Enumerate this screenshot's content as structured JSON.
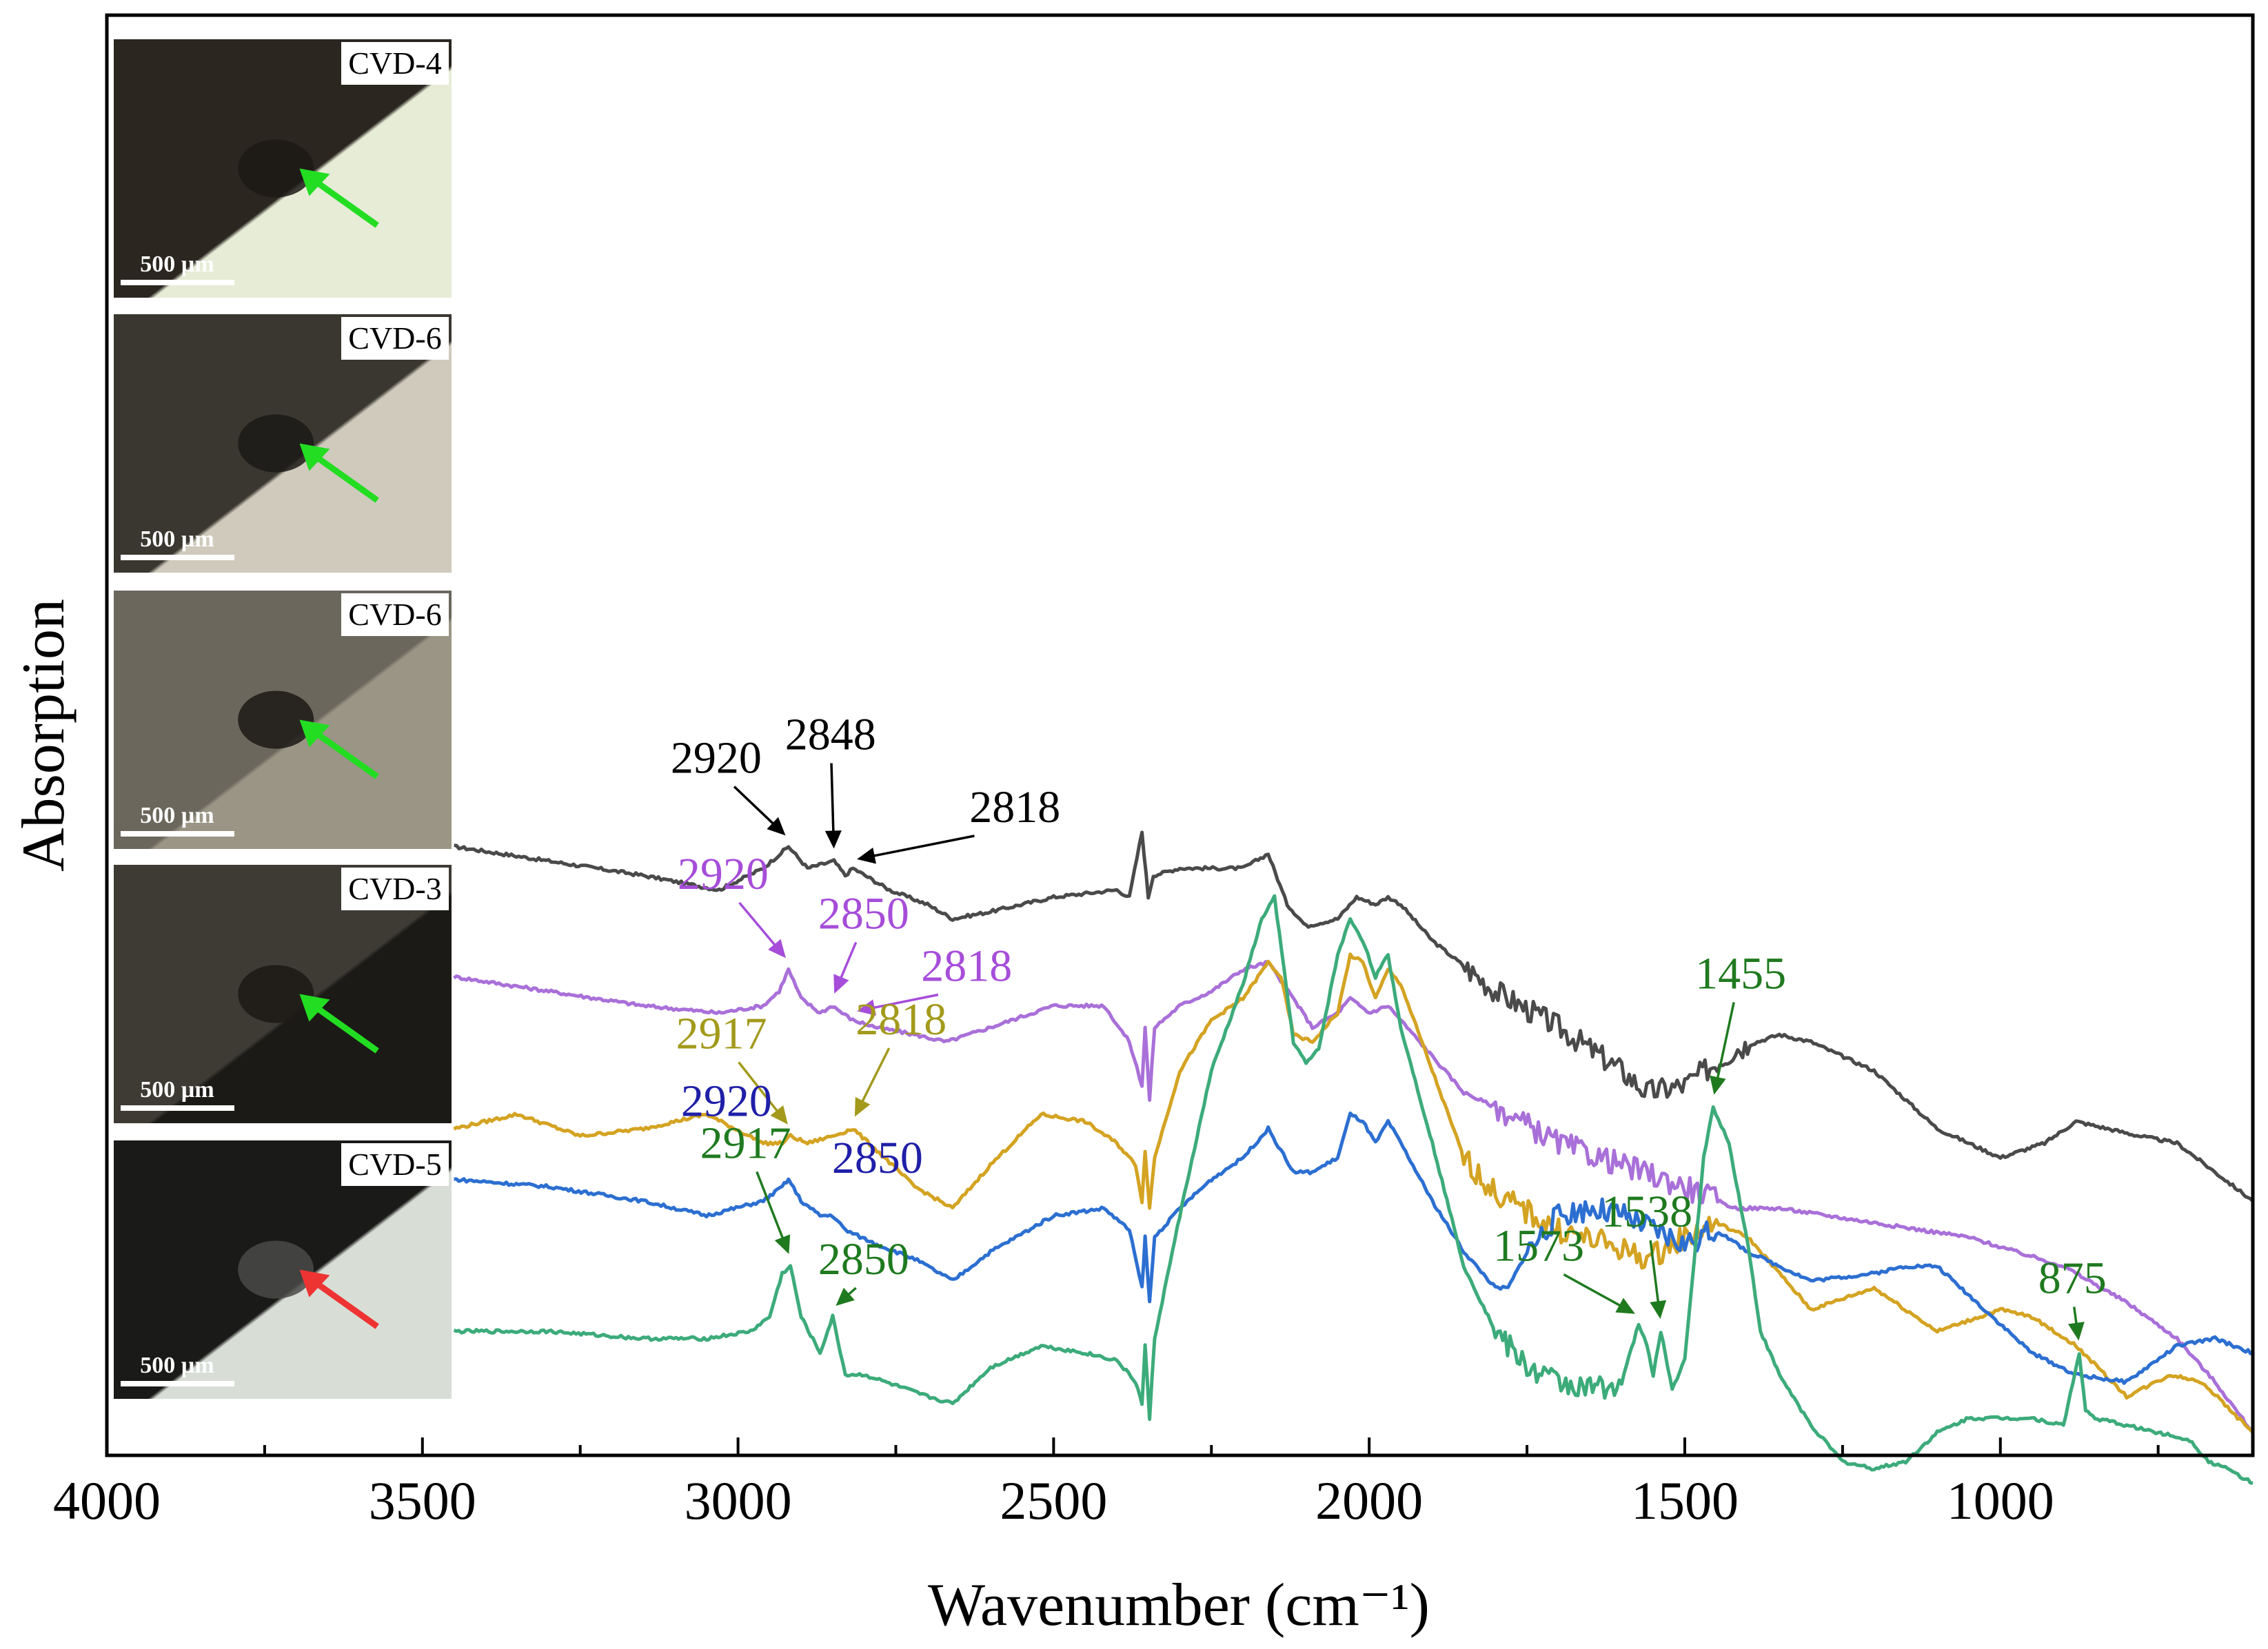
{
  "chart_data": {
    "type": "line",
    "title": "",
    "xlabel": "Wavenumber (cm⁻¹)",
    "ylabel": "Absorption",
    "xlim": [
      4000,
      600
    ],
    "x_reversed": true,
    "yticks_shown": false,
    "xticks": [
      "4000",
      "3500",
      "3000",
      "2500",
      "2000",
      "1500",
      "1000"
    ],
    "xtick_values": [
      4000,
      3500,
      3000,
      2500,
      2000,
      1500,
      1000
    ],
    "series": [
      {
        "name": "CVD-4",
        "color": "#4a4a4a",
        "x": [
          3450,
          3300,
          3150,
          3030,
          2960,
          2920,
          2890,
          2848,
          2830,
          2818,
          2760,
          2700,
          2660,
          2600,
          2500,
          2400,
          2380,
          2360,
          2350,
          2342,
          2300,
          2200,
          2160,
          2130,
          2100,
          2050,
          2020,
          1990,
          1970,
          1950,
          1900,
          1800,
          1700,
          1650,
          1600,
          1560,
          1500,
          1420,
          1350,
          1300,
          1200,
          1100,
          1000,
          930,
          880,
          830,
          780,
          720,
          660,
          600
        ],
        "values": [
          83,
          81,
          79,
          77,
          80,
          83,
          80,
          81,
          79,
          80,
          77,
          75,
          73,
          74,
          76,
          77,
          76,
          85,
          76,
          79,
          80,
          80,
          82,
          75,
          72,
          73,
          76,
          75,
          76,
          75,
          70,
          63,
          58,
          55,
          52,
          49,
          50,
          55,
          57,
          56,
          52,
          44,
          40,
          42,
          45,
          44,
          43,
          42,
          38,
          34
        ],
        "noisy_range": [
          1850,
          1400
        ]
      },
      {
        "name": "CVD-6",
        "color": "#a970d9",
        "x": [
          3450,
          3300,
          3150,
          3030,
          2960,
          2935,
          2920,
          2900,
          2870,
          2850,
          2835,
          2818,
          2780,
          2720,
          2670,
          2600,
          2500,
          2420,
          2380,
          2360,
          2355,
          2348,
          2340,
          2300,
          2250,
          2200,
          2160,
          2120,
          2090,
          2050,
          2030,
          2000,
          1970,
          1940,
          1900,
          1850,
          1800,
          1700,
          1600,
          1500,
          1420,
          1350,
          1200,
          1050,
          900,
          800,
          720,
          660,
          600
        ],
        "values": [
          65,
          63,
          61,
          60,
          61,
          63,
          66,
          62,
          60,
          61,
          60,
          59,
          58,
          57,
          56,
          58,
          61,
          61,
          56,
          50,
          58,
          48,
          58,
          61,
          63,
          66,
          67,
          62,
          58,
          60,
          62,
          60,
          61,
          58,
          54,
          49,
          47,
          42,
          39,
          36,
          33,
          33,
          31,
          29,
          25,
          20,
          15,
          9,
          2
        ],
        "noisy_range": [
          1800,
          1450
        ]
      },
      {
        "name": "CVD-6",
        "color": "#d4a322",
        "x": [
          3450,
          3350,
          3250,
          3150,
          3050,
          2960,
          2930,
          2917,
          2890,
          2850,
          2818,
          2780,
          2720,
          2660,
          2600,
          2520,
          2450,
          2400,
          2370,
          2360,
          2355,
          2348,
          2340,
          2300,
          2250,
          2200,
          2160,
          2140,
          2120,
          2090,
          2050,
          2030,
          2010,
          1990,
          1970,
          1950,
          1900,
          1850,
          1800,
          1700,
          1620,
          1560,
          1500,
          1450,
          1400,
          1350,
          1300,
          1200,
          1100,
          1000,
          950,
          880,
          800,
          730,
          680,
          600
        ],
        "values": [
          44,
          46,
          43,
          44,
          46,
          42,
          42,
          43,
          42,
          43,
          44,
          41,
          36,
          33,
          39,
          46,
          45,
          42,
          39,
          34,
          41,
          33,
          40,
          52,
          59,
          62,
          67,
          65,
          57,
          56,
          60,
          68,
          67,
          62,
          66,
          64,
          52,
          40,
          35,
          30,
          28,
          26,
          29,
          31,
          29,
          24,
          19,
          22,
          16,
          19,
          18,
          14,
          7,
          10,
          9,
          2
        ],
        "noisy_range": [
          1850,
          1450
        ]
      },
      {
        "name": "CVD-3",
        "color": "#2c6fd1",
        "x": [
          3450,
          3300,
          3150,
          3050,
          2960,
          2930,
          2920,
          2900,
          2870,
          2850,
          2830,
          2780,
          2720,
          2660,
          2600,
          2500,
          2420,
          2380,
          2360,
          2355,
          2348,
          2340,
          2300,
          2250,
          2200,
          2160,
          2120,
          2090,
          2050,
          2030,
          2010,
          1990,
          1970,
          1950,
          1900,
          1850,
          1800,
          1780,
          1750,
          1700,
          1650,
          1600,
          1550,
          1500,
          1450,
          1400,
          1300,
          1200,
          1150,
          1100,
          1000,
          950,
          880,
          800,
          720,
          660,
          630,
          600
        ],
        "values": [
          37,
          36,
          34,
          32,
          34,
          36,
          37,
          34,
          32,
          32,
          30,
          28,
          26,
          23,
          27,
          32,
          33,
          30,
          22,
          29,
          20,
          29,
          33,
          37,
          40,
          44,
          38,
          38,
          40,
          46,
          45,
          42,
          45,
          42,
          34,
          27,
          22,
          22,
          27,
          32,
          33,
          32,
          30,
          28,
          30,
          27,
          23,
          24,
          25,
          25,
          17,
          13,
          10,
          9,
          14,
          15,
          14,
          13
        ],
        "noisy_range": [
          1750,
          1450
        ]
      },
      {
        "name": "CVD-5",
        "color": "#3cab7a",
        "x": [
          3450,
          3300,
          3150,
          3050,
          2980,
          2950,
          2930,
          2917,
          2900,
          2870,
          2850,
          2830,
          2800,
          2700,
          2660,
          2600,
          2520,
          2450,
          2400,
          2370,
          2360,
          2355,
          2348,
          2340,
          2300,
          2250,
          2200,
          2170,
          2150,
          2120,
          2100,
          2080,
          2050,
          2030,
          2010,
          1990,
          1970,
          1950,
          1900,
          1850,
          1800,
          1750,
          1700,
          1650,
          1600,
          1573,
          1560,
          1550,
          1538,
          1520,
          1500,
          1470,
          1455,
          1430,
          1400,
          1380,
          1350,
          1300,
          1250,
          1200,
          1150,
          1100,
          1050,
          1000,
          950,
          900,
          885,
          875,
          865,
          850,
          800,
          750,
          700,
          670,
          640,
          600
        ],
        "values": [
          16,
          16,
          15,
          15,
          16,
          18,
          24,
          25,
          18,
          13,
          18,
          10,
          10,
          7,
          6,
          11,
          14,
          13,
          12,
          9,
          6,
          14,
          4,
          15,
          32,
          52,
          64,
          73,
          76,
          56,
          53,
          55,
          68,
          73,
          70,
          65,
          68,
          58,
          42,
          25,
          16,
          11,
          9,
          8,
          9,
          17,
          14,
          10,
          16,
          8,
          12,
          40,
          47,
          42,
          28,
          16,
          10,
          3,
          -2,
          -3,
          -2,
          2,
          4,
          4,
          4,
          3,
          9,
          13,
          5,
          4,
          3,
          2,
          1,
          -2,
          -3,
          -5
        ],
        "noisy_range": [
          1800,
          1600
        ]
      }
    ],
    "annotations": [
      {
        "text": "2920",
        "series": 0,
        "x": 2920,
        "color": "#000000"
      },
      {
        "text": "2848",
        "series": 0,
        "x": 2848,
        "color": "#000000"
      },
      {
        "text": "2818",
        "series": 0,
        "x": 2818,
        "color": "#000000"
      },
      {
        "text": "2920",
        "series": 1,
        "x": 2920,
        "color": "#a64dd9"
      },
      {
        "text": "2850",
        "series": 1,
        "x": 2850,
        "color": "#a64dd9"
      },
      {
        "text": "2818",
        "series": 1,
        "x": 2818,
        "color": "#a64dd9"
      },
      {
        "text": "2917",
        "series": 2,
        "x": 2917,
        "color": "#a39a1c"
      },
      {
        "text": "2818",
        "series": 2,
        "x": 2818,
        "color": "#a39a1c"
      },
      {
        "text": "2920",
        "series": 3,
        "x": 2920,
        "color": "#1f1fa8"
      },
      {
        "text": "2850",
        "series": 3,
        "x": 2850,
        "color": "#1f1fa8"
      },
      {
        "text": "2917",
        "series": 4,
        "x": 2917,
        "color": "#1f7a1f"
      },
      {
        "text": "2850",
        "series": 4,
        "x": 2850,
        "color": "#1f7a1f"
      },
      {
        "text": "1573",
        "series": 4,
        "x": 1573,
        "color": "#1f7a1f"
      },
      {
        "text": "1538",
        "series": 4,
        "x": 1538,
        "color": "#1f7a1f"
      },
      {
        "text": "1455",
        "series": 4,
        "x": 1455,
        "color": "#1f7a1f"
      },
      {
        "text": "875",
        "series": 4,
        "x": 875,
        "color": "#1f7a1f"
      }
    ],
    "insets": [
      {
        "label": "CVD-4",
        "scale": "500 µm",
        "arrow_color": "#22dd22"
      },
      {
        "label": "CVD-6",
        "scale": "500 µm",
        "arrow_color": "#22dd22"
      },
      {
        "label": "CVD-6",
        "scale": "500 µm",
        "arrow_color": "#22dd22"
      },
      {
        "label": "CVD-3",
        "scale": "500 µm",
        "arrow_color": "#22dd22"
      },
      {
        "label": "CVD-5",
        "scale": "500 µm",
        "arrow_color": "#ee3333"
      }
    ]
  }
}
